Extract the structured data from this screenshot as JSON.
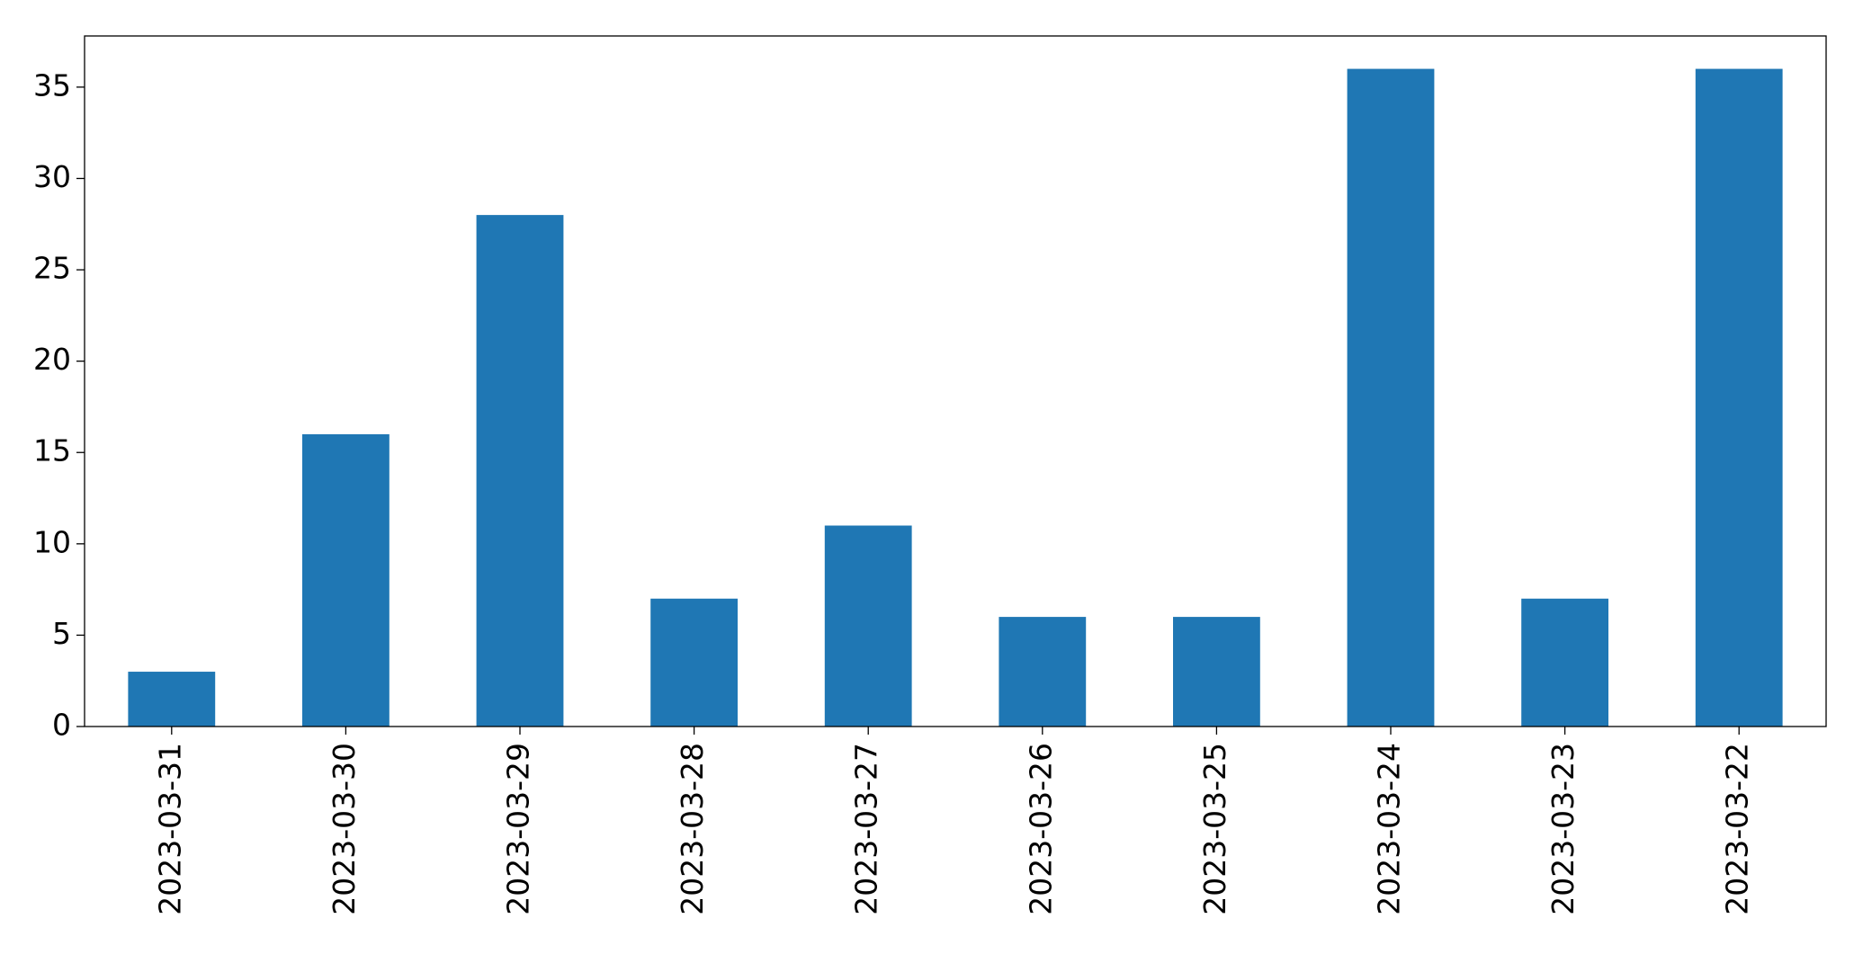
{
  "chart_data": {
    "type": "bar",
    "categories": [
      "2023-03-31",
      "2023-03-30",
      "2023-03-29",
      "2023-03-28",
      "2023-03-27",
      "2023-03-26",
      "2023-03-25",
      "2023-03-24",
      "2023-03-23",
      "2023-03-22"
    ],
    "values": [
      3,
      16,
      28,
      7,
      11,
      6,
      6,
      36,
      7,
      36
    ],
    "color": "#1f77b4",
    "ylim": [
      0,
      37.8
    ],
    "yticks": [
      0,
      5,
      10,
      15,
      20,
      25,
      30,
      35
    ],
    "grid": false
  }
}
